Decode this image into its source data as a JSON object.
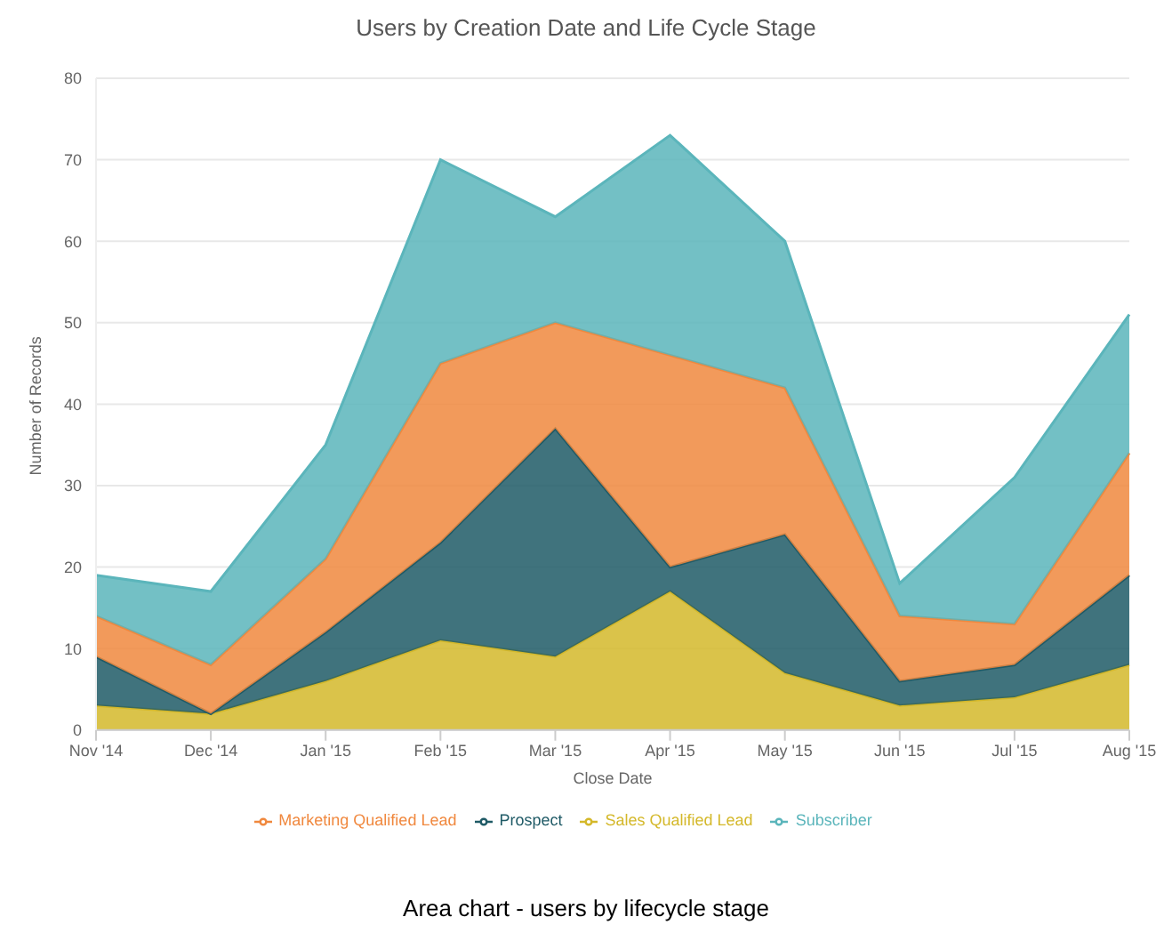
{
  "chart_data": {
    "type": "area",
    "title": "Users by Creation Date and Life Cycle Stage",
    "xlabel": "Close Date",
    "ylabel": "Number of Records",
    "categories": [
      "Nov '14",
      "Dec '14",
      "Jan '15",
      "Feb '15",
      "Mar '15",
      "Apr '15",
      "May '15",
      "Jun '15",
      "Jul '15",
      "Aug '15"
    ],
    "stacked": true,
    "ylim": [
      0,
      80
    ],
    "yticks": [
      0,
      10,
      20,
      30,
      40,
      50,
      60,
      70,
      80
    ],
    "grid": "y",
    "legend": "bottom",
    "series": [
      {
        "name": "Sales Qualified Lead",
        "color": "#d4b82a",
        "values": [
          3,
          2,
          6,
          11,
          9,
          17,
          7,
          3,
          4,
          8
        ]
      },
      {
        "name": "Prospect",
        "color": "#1f5a66",
        "values": [
          6,
          0,
          6,
          12,
          28,
          3,
          17,
          3,
          4,
          11
        ]
      },
      {
        "name": "Marketing Qualified Lead",
        "color": "#f0883e",
        "values": [
          5,
          6,
          9,
          22,
          13,
          26,
          18,
          8,
          5,
          15
        ]
      },
      {
        "name": "Subscriber",
        "color": "#5bb5bb",
        "values": [
          5,
          9,
          14,
          25,
          13,
          27,
          18,
          4,
          18,
          17
        ]
      }
    ],
    "annotations": [
      "Area chart - users by lifecycle stage"
    ]
  }
}
